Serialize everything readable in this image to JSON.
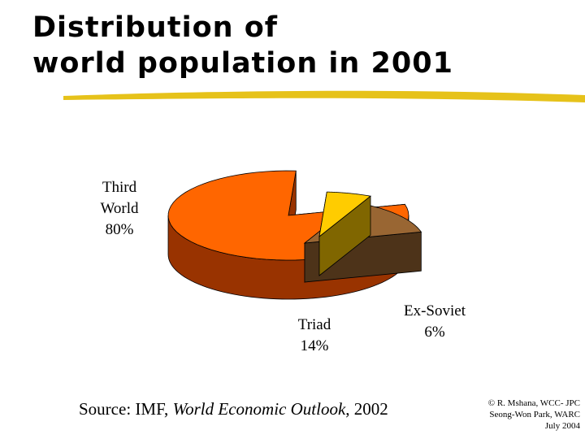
{
  "slide": {
    "title_line1": "Distribution of",
    "title_line2": "world population in 2001",
    "source_prefix": "Source: IMF, ",
    "source_italic": "World Economic Outlook",
    "source_suffix": ", 2002",
    "credit_line1": "© R. Mshana, WCC- JPC",
    "credit_line2": "Seong-Won Park, WARC",
    "credit_line3": "July 2004",
    "underline_color": "#e6c21a"
  },
  "chart_data": {
    "type": "pie",
    "style": "3d-exploded",
    "title": "",
    "slices": [
      {
        "label_line1": "Third",
        "label_line2": "World",
        "pct": "80%",
        "value": 80,
        "color": "#ff6600",
        "side_color": "#993300"
      },
      {
        "label_line1": "Ex-Soviet",
        "label_line2": "",
        "pct": "6%",
        "value": 6,
        "color": "#ffcc00",
        "side_color": "#806600"
      },
      {
        "label_line1": "Triad",
        "label_line2": "",
        "pct": "14%",
        "value": 14,
        "color": "#996633",
        "side_color": "#4d3319"
      }
    ]
  }
}
